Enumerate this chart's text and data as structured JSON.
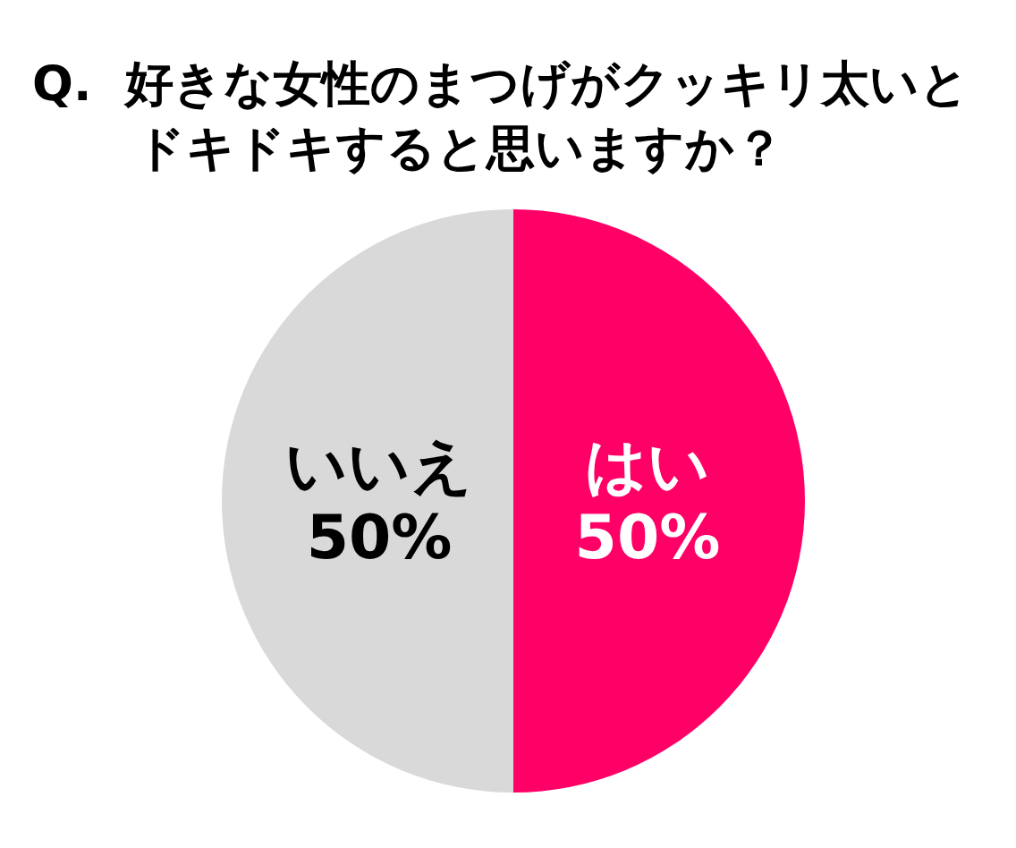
{
  "chart_data": {
    "type": "pie",
    "title": "Q.  好きな女性のまつげがクッキリ太いとドキドキすると思いますか？",
    "categories": [
      "はい",
      "いいえ"
    ],
    "values": [
      50,
      50
    ],
    "colors": [
      "#ff0066",
      "#d9d9d9"
    ],
    "value_labels": [
      "50%",
      "50%"
    ]
  }
}
